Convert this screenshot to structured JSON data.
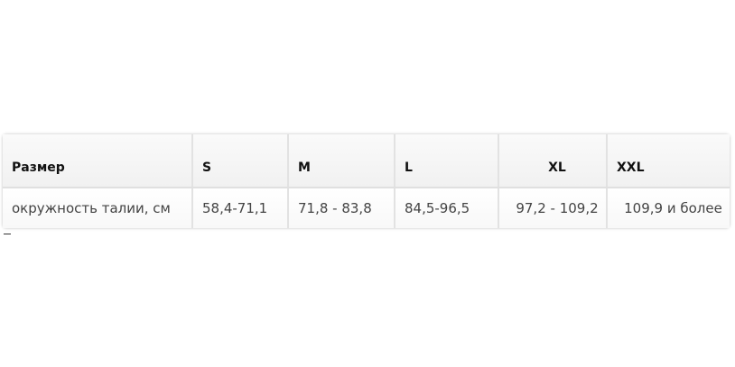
{
  "table": {
    "headers": [
      "Размер",
      "S",
      "M",
      "L",
      "XL",
      "XXL"
    ],
    "rows": [
      [
        "окружность талии, см",
        "58,4-71,1",
        "71,8 - 83,8",
        "84,5-96,5",
        "97,2 - 109,2",
        "109,9 и более"
      ]
    ]
  }
}
